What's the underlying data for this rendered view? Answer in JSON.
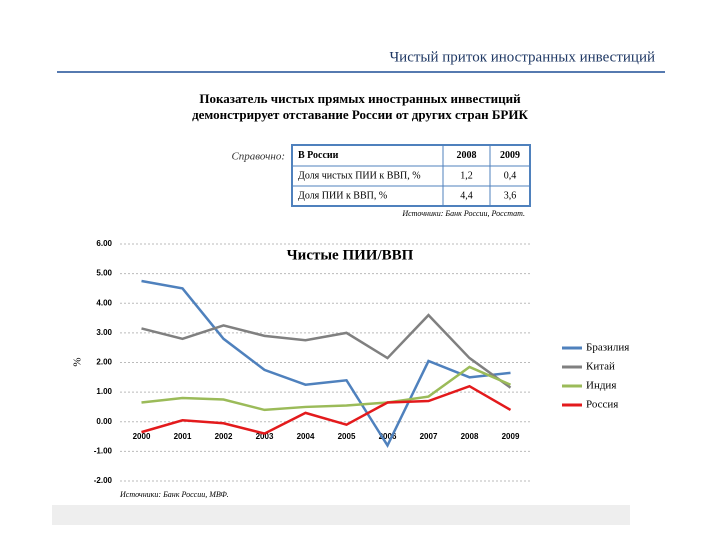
{
  "header": {
    "title": "Чистый приток иностранных инвестиций"
  },
  "subtitle": [
    "Показатель чистых прямых иностранных инвестиций",
    "демонстрирует отставание России от других стран БРИК"
  ],
  "table": {
    "caption": "Справочно:",
    "rows": [
      [
        "В России",
        "2008",
        "2009"
      ],
      [
        "Доля чистых ПИИ к ВВП, %",
        "1,2",
        "0,4"
      ],
      [
        "Доля ПИИ к ВВП, %",
        "4,4",
        "3,6"
      ]
    ],
    "source": "Источники: Банк России, Росстат."
  },
  "chart_data": {
    "type": "line",
    "title": "Чистые ПИИ/ВВП",
    "y_label": "%",
    "source": "Источники: Банк России, МВФ.",
    "categories": [
      "2000",
      "2001",
      "2002",
      "2003",
      "2004",
      "2005",
      "2006",
      "2007",
      "2008",
      "2009"
    ],
    "series": [
      {
        "name": "Бразилия",
        "color": "#4f81bd",
        "values": [
          4.75,
          4.5,
          2.8,
          1.75,
          1.25,
          1.4,
          -0.8,
          2.05,
          1.5,
          1.65
        ]
      },
      {
        "name": "Китай",
        "color": "#808080",
        "values": [
          3.15,
          2.8,
          3.25,
          2.9,
          2.75,
          3.0,
          2.15,
          3.6,
          2.15,
          1.15
        ]
      },
      {
        "name": "Индия",
        "color": "#9bbb59",
        "values": [
          0.65,
          0.8,
          0.75,
          0.4,
          0.5,
          0.55,
          0.65,
          0.85,
          1.85,
          1.25
        ]
      },
      {
        "name": "Россия",
        "color": "#e31a1c",
        "values": [
          -0.35,
          0.05,
          -0.05,
          -0.4,
          0.3,
          -0.1,
          0.65,
          0.7,
          1.2,
          0.4
        ]
      }
    ],
    "ylim": [
      -2,
      6
    ],
    "yticks": [
      {
        "value": -2,
        "label": "-2.00"
      },
      {
        "value": -1,
        "label": "-1.00"
      },
      {
        "value": 0,
        "label": "0.00"
      },
      {
        "value": 1,
        "label": "1.00"
      },
      {
        "value": 2,
        "label": "2.00"
      },
      {
        "value": 3,
        "label": "3.00"
      },
      {
        "value": 4,
        "label": "4.00"
      },
      {
        "value": 5,
        "label": "5.00"
      },
      {
        "value": 6,
        "label": "6.00"
      }
    ],
    "grid": true,
    "legend": "right"
  }
}
